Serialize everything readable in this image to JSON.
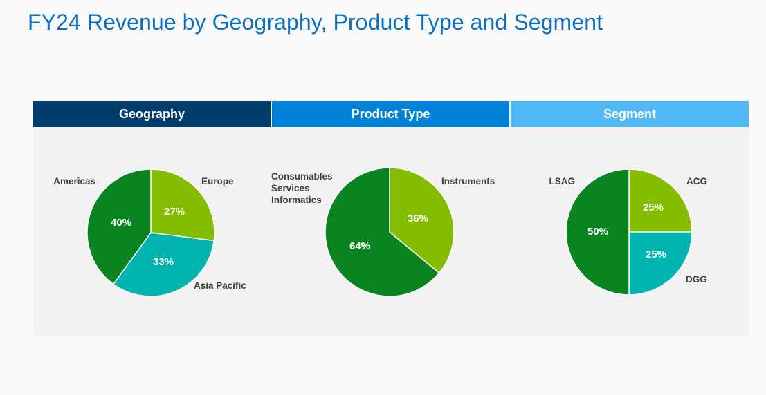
{
  "title": "FY24 Revenue by Geography, Product Type and Segment",
  "colors": {
    "title": "#0a6fc2",
    "header_geography": "#003d6b",
    "header_product_type": "#0082d8",
    "header_segment": "#4fb8f5",
    "dark_green": "#098421",
    "light_green": "#84bd00",
    "teal": "#00b5b0"
  },
  "chart_data": [
    {
      "type": "pie",
      "title": "Geography",
      "slices": [
        {
          "label": "Europe",
          "value": 27,
          "value_label": "27%",
          "color": "#84bd00"
        },
        {
          "label": "Asia Pacific",
          "value": 33,
          "value_label": "33%",
          "color": "#00b5b0"
        },
        {
          "label": "Americas",
          "value": 40,
          "value_label": "40%",
          "color": "#098421"
        }
      ]
    },
    {
      "type": "pie",
      "title": "Product Type",
      "slices": [
        {
          "label": "Instruments",
          "value": 36,
          "value_label": "36%",
          "color": "#84bd00"
        },
        {
          "label": "Consumables Services Informatics",
          "label_lines": [
            "Consumables",
            "Services",
            "Informatics"
          ],
          "value": 64,
          "value_label": "64%",
          "color": "#098421"
        }
      ]
    },
    {
      "type": "pie",
      "title": "Segment",
      "slices": [
        {
          "label": "ACG",
          "value": 25,
          "value_label": "25%",
          "color": "#84bd00"
        },
        {
          "label": "DGG",
          "value": 25,
          "value_label": "25%",
          "color": "#00b5b0"
        },
        {
          "label": "LSAG",
          "value": 50,
          "value_label": "50%",
          "color": "#098421"
        }
      ]
    }
  ]
}
